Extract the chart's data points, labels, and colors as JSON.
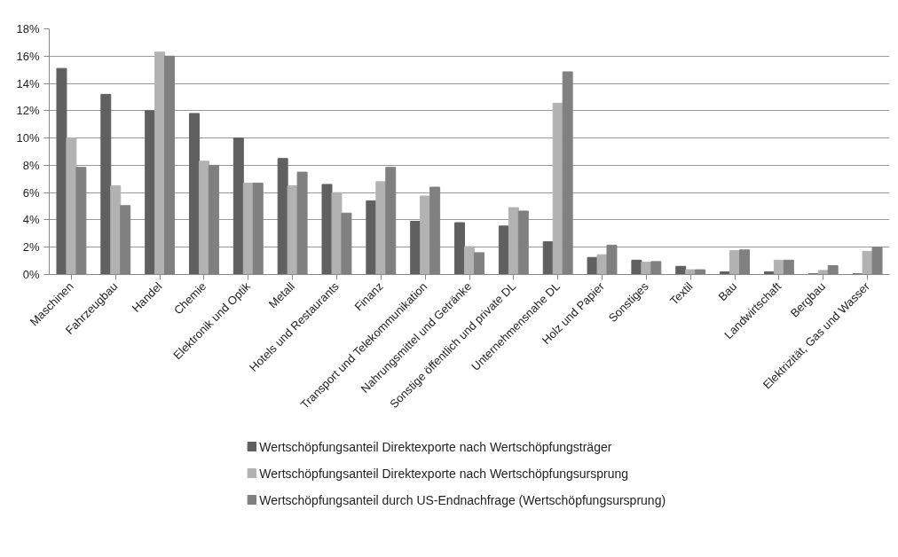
{
  "chart_data": {
    "type": "bar",
    "categories": [
      "Maschinen",
      "Fahrzeugbau",
      "Handel",
      "Chemie",
      "Elektronik und Optik",
      "Metall",
      "Hotels und Restaurants",
      "Finanz",
      "Transport und Telekommunikation",
      "Nahrungsmittel und Getränke",
      "Sonstige öffentlich und private DL",
      "Unternehmensnahe DL",
      "Holz und Papier",
      "Sonstiges",
      "Textil",
      "Bau",
      "Landwirtschaft",
      "Bergbau",
      "Elektrizität, Gas und Wasser"
    ],
    "series": [
      {
        "name": "Wertschöpfungsanteil Direktexporte nach Wertschöpfungsträger",
        "color": "#606060",
        "values": [
          15.1,
          13.2,
          12.0,
          11.8,
          10.0,
          8.5,
          6.6,
          5.4,
          3.9,
          3.8,
          3.55,
          2.4,
          1.25,
          1.05,
          0.6,
          0.2,
          0.2,
          0.05,
          0.05
        ]
      },
      {
        "name": "Wertschöpfungsanteil Direktexporte nach Wertschöpfungsursprung",
        "color": "#b2b2b2",
        "values": [
          10.0,
          6.5,
          16.3,
          8.3,
          6.7,
          6.5,
          6.0,
          6.8,
          5.75,
          2.05,
          4.9,
          12.55,
          1.45,
          0.9,
          0.35,
          1.75,
          1.05,
          0.3,
          1.7
        ]
      },
      {
        "name": "Wertschöpfungsanteil durch US-Endnachfrage (Wertschöpfungsursprung)",
        "color": "#808080",
        "values": [
          7.85,
          5.05,
          16.0,
          8.0,
          6.7,
          7.5,
          4.5,
          7.85,
          6.4,
          1.6,
          4.65,
          14.85,
          2.15,
          0.95,
          0.35,
          1.8,
          1.05,
          0.65,
          2.0
        ]
      }
    ],
    "ylim": [
      0,
      18
    ],
    "yticks": [
      {
        "value": 0,
        "label": "0%"
      },
      {
        "value": 2,
        "label": "2%"
      },
      {
        "value": 4,
        "label": "4%"
      },
      {
        "value": 6,
        "label": "6%"
      },
      {
        "value": 8,
        "label": "8%"
      },
      {
        "value": 10,
        "label": "10%"
      },
      {
        "value": 12,
        "label": "12%"
      },
      {
        "value": 14,
        "label": "14%"
      },
      {
        "value": 16,
        "label": "16%"
      },
      {
        "value": 18,
        "label": "18%"
      }
    ],
    "grid": "y",
    "legend": "bottom"
  }
}
